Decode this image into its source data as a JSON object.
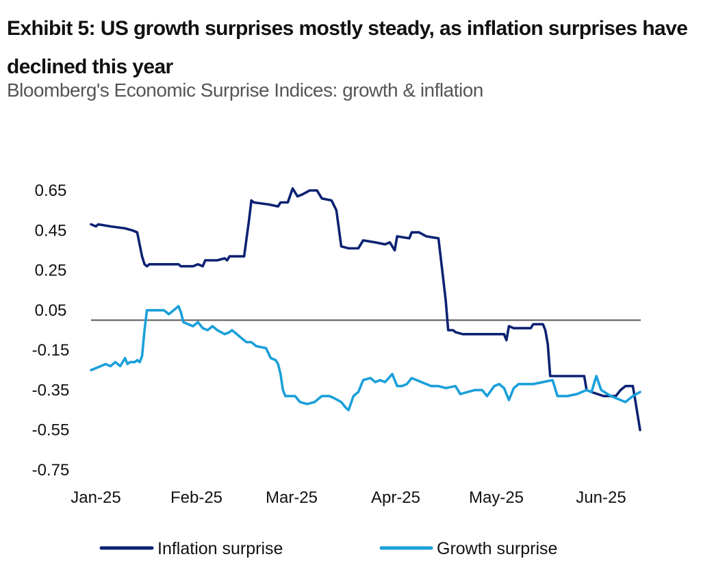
{
  "chart_data": {
    "type": "line",
    "title": "Exhibit 5: US growth surprises mostly steady, as inflation surprises have declined this year",
    "subtitle": "Bloomberg's Economic Surprise Indices: growth & inflation",
    "xlabel": "",
    "ylabel": "",
    "x_ticks": [
      "Jan-25",
      "Feb-25",
      "Mar-25",
      "Apr-25",
      "May-25",
      "Jun-25"
    ],
    "y_ticks": [
      "0.65",
      "0.45",
      "0.25",
      "0.05",
      "-0.15",
      "-0.35",
      "-0.55",
      "-0.75"
    ],
    "ylim": [
      -0.75,
      0.65
    ],
    "reference_line": 0,
    "legend_position": "bottom",
    "series": [
      {
        "name": "Inflation surprise",
        "color": "#0c2272",
        "points": [
          [
            0,
            0.48
          ],
          [
            2,
            0.47
          ],
          [
            3,
            0.48
          ],
          [
            8,
            0.47
          ],
          [
            14,
            0.46
          ],
          [
            17,
            0.45
          ],
          [
            19,
            0.44
          ],
          [
            21,
            0.32
          ],
          [
            22,
            0.28
          ],
          [
            23,
            0.27
          ],
          [
            24,
            0.28
          ],
          [
            36,
            0.28
          ],
          [
            37,
            0.27
          ],
          [
            42,
            0.27
          ],
          [
            44,
            0.28
          ],
          [
            46,
            0.27
          ],
          [
            47,
            0.3
          ],
          [
            52,
            0.3
          ],
          [
            55,
            0.31
          ],
          [
            56,
            0.3
          ],
          [
            57,
            0.32
          ],
          [
            61,
            0.32
          ],
          [
            63,
            0.32
          ],
          [
            65,
            0.5
          ],
          [
            66,
            0.6
          ],
          [
            67,
            0.59
          ],
          [
            73,
            0.58
          ],
          [
            77,
            0.57
          ],
          [
            78,
            0.59
          ],
          [
            81,
            0.59
          ],
          [
            83,
            0.66
          ],
          [
            85,
            0.62
          ],
          [
            87,
            0.63
          ],
          [
            90,
            0.65
          ],
          [
            93,
            0.65
          ],
          [
            94,
            0.63
          ],
          [
            95,
            0.61
          ],
          [
            99,
            0.6
          ],
          [
            101,
            0.55
          ],
          [
            103,
            0.37
          ],
          [
            106,
            0.36
          ],
          [
            110,
            0.36
          ],
          [
            112,
            0.4
          ],
          [
            117,
            0.39
          ],
          [
            121,
            0.38
          ],
          [
            123,
            0.39
          ],
          [
            125,
            0.35
          ],
          [
            126,
            0.42
          ],
          [
            131,
            0.41
          ],
          [
            132,
            0.44
          ],
          [
            135,
            0.44
          ],
          [
            138,
            0.42
          ],
          [
            143,
            0.41
          ],
          [
            146,
            0.1
          ],
          [
            147,
            -0.05
          ],
          [
            149,
            -0.05
          ],
          [
            150,
            -0.06
          ],
          [
            153,
            -0.07
          ],
          [
            165,
            -0.07
          ],
          [
            170,
            -0.07
          ],
          [
            171,
            -0.1
          ],
          [
            172,
            -0.03
          ],
          [
            174,
            -0.04
          ],
          [
            181,
            -0.04
          ],
          [
            182,
            -0.02
          ],
          [
            186,
            -0.02
          ],
          [
            187,
            -0.05
          ],
          [
            188,
            -0.12
          ],
          [
            189,
            -0.28
          ],
          [
            200,
            -0.28
          ],
          [
            203,
            -0.28
          ],
          [
            204,
            -0.35
          ],
          [
            206,
            -0.36
          ],
          [
            211,
            -0.38
          ],
          [
            216,
            -0.38
          ],
          [
            218,
            -0.35
          ],
          [
            220,
            -0.33
          ],
          [
            223,
            -0.33
          ],
          [
            224,
            -0.4
          ],
          [
            226,
            -0.55
          ]
        ]
      },
      {
        "name": "Growth surprise",
        "color": "#1a9fda",
        "points": [
          [
            0,
            -0.25
          ],
          [
            2,
            -0.24
          ],
          [
            6,
            -0.22
          ],
          [
            8,
            -0.23
          ],
          [
            10,
            -0.21
          ],
          [
            12,
            -0.23
          ],
          [
            14,
            -0.19
          ],
          [
            15,
            -0.22
          ],
          [
            16,
            -0.21
          ],
          [
            18,
            -0.21
          ],
          [
            19,
            -0.2
          ],
          [
            20,
            -0.21
          ],
          [
            21,
            -0.18
          ],
          [
            22,
            -0.05
          ],
          [
            23,
            0.05
          ],
          [
            30,
            0.05
          ],
          [
            32,
            0.03
          ],
          [
            33,
            0.04
          ],
          [
            34,
            0.05
          ],
          [
            36,
            0.07
          ],
          [
            37,
            0.04
          ],
          [
            38,
            -0.01
          ],
          [
            40,
            -0.02
          ],
          [
            42,
            -0.03
          ],
          [
            44,
            -0.01
          ],
          [
            46,
            -0.04
          ],
          [
            48,
            -0.05
          ],
          [
            50,
            -0.03
          ],
          [
            52,
            -0.05
          ],
          [
            55,
            -0.07
          ],
          [
            57,
            -0.06
          ],
          [
            58,
            -0.05
          ],
          [
            60,
            -0.07
          ],
          [
            62,
            -0.09
          ],
          [
            64,
            -0.11
          ],
          [
            66,
            -0.11
          ],
          [
            68,
            -0.13
          ],
          [
            72,
            -0.14
          ],
          [
            74,
            -0.19
          ],
          [
            76,
            -0.2
          ],
          [
            77,
            -0.22
          ],
          [
            78,
            -0.27
          ],
          [
            79,
            -0.35
          ],
          [
            80,
            -0.38
          ],
          [
            84,
            -0.38
          ],
          [
            86,
            -0.41
          ],
          [
            89,
            -0.42
          ],
          [
            92,
            -0.41
          ],
          [
            95,
            -0.38
          ],
          [
            98,
            -0.38
          ],
          [
            100,
            -0.39
          ],
          [
            103,
            -0.41
          ],
          [
            105,
            -0.44
          ],
          [
            106,
            -0.45
          ],
          [
            108,
            -0.38
          ],
          [
            110,
            -0.36
          ],
          [
            112,
            -0.3
          ],
          [
            115,
            -0.29
          ],
          [
            117,
            -0.31
          ],
          [
            119,
            -0.3
          ],
          [
            121,
            -0.31
          ],
          [
            124,
            -0.27
          ],
          [
            126,
            -0.33
          ],
          [
            128,
            -0.33
          ],
          [
            130,
            -0.32
          ],
          [
            132,
            -0.29
          ],
          [
            136,
            -0.31
          ],
          [
            140,
            -0.33
          ],
          [
            143,
            -0.33
          ],
          [
            146,
            -0.34
          ],
          [
            150,
            -0.33
          ],
          [
            152,
            -0.37
          ],
          [
            155,
            -0.36
          ],
          [
            158,
            -0.35
          ],
          [
            161,
            -0.35
          ],
          [
            163,
            -0.38
          ],
          [
            166,
            -0.33
          ],
          [
            168,
            -0.32
          ],
          [
            170,
            -0.34
          ],
          [
            172,
            -0.4
          ],
          [
            174,
            -0.34
          ],
          [
            176,
            -0.32
          ],
          [
            179,
            -0.32
          ],
          [
            182,
            -0.32
          ],
          [
            186,
            -0.31
          ],
          [
            190,
            -0.3
          ],
          [
            192,
            -0.38
          ],
          [
            196,
            -0.38
          ],
          [
            200,
            -0.37
          ],
          [
            204,
            -0.35
          ],
          [
            206,
            -0.36
          ],
          [
            208,
            -0.28
          ],
          [
            210,
            -0.35
          ],
          [
            214,
            -0.38
          ],
          [
            218,
            -0.4
          ],
          [
            220,
            -0.41
          ],
          [
            223,
            -0.38
          ],
          [
            226,
            -0.36
          ]
        ]
      }
    ]
  }
}
